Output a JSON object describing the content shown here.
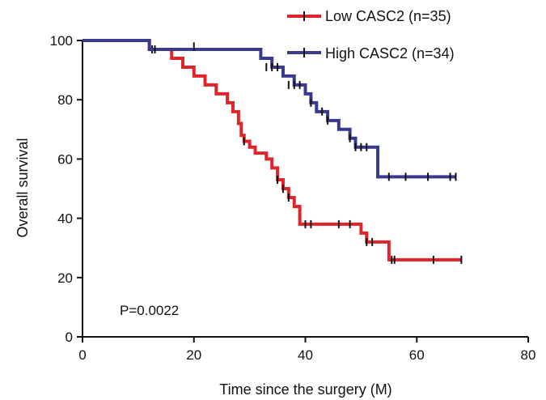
{
  "chart_data": {
    "type": "line",
    "step": true,
    "xlabel": "Time since the surgery (M)",
    "ylabel": "Overall survival",
    "xlim": [
      0,
      80
    ],
    "ylim": [
      0,
      100
    ],
    "xticks": [
      0,
      20,
      40,
      60,
      80
    ],
    "yticks": [
      0,
      20,
      40,
      60,
      80,
      100
    ],
    "grid": false,
    "legend_position": "top-right",
    "annotation": "P=0.0022",
    "series": [
      {
        "name": "Low CASC2 (n=35)",
        "color": "#e0242b",
        "steps": [
          [
            0,
            100
          ],
          [
            12,
            97
          ],
          [
            16,
            94
          ],
          [
            18,
            91
          ],
          [
            20,
            88
          ],
          [
            22,
            85
          ],
          [
            24,
            82
          ],
          [
            26,
            79
          ],
          [
            27,
            76
          ],
          [
            28,
            72
          ],
          [
            28.5,
            68
          ],
          [
            29,
            66
          ],
          [
            30,
            64
          ],
          [
            31,
            62
          ],
          [
            33,
            60
          ],
          [
            34,
            57
          ],
          [
            35,
            53
          ],
          [
            36,
            50
          ],
          [
            37,
            47
          ],
          [
            38,
            44
          ],
          [
            39,
            38
          ],
          [
            50,
            35
          ],
          [
            51,
            32
          ],
          [
            53,
            32
          ],
          [
            55,
            26
          ],
          [
            68,
            26
          ]
        ],
        "censored": [
          [
            12.5,
            97
          ],
          [
            29,
            66
          ],
          [
            35,
            53
          ],
          [
            36,
            50
          ],
          [
            37,
            47
          ],
          [
            40,
            38
          ],
          [
            41,
            38
          ],
          [
            46,
            38
          ],
          [
            48,
            38
          ],
          [
            51,
            32
          ],
          [
            52,
            32
          ],
          [
            55.5,
            26
          ],
          [
            56,
            26
          ],
          [
            63,
            26
          ],
          [
            68,
            26
          ]
        ]
      },
      {
        "name": "High CASC2 (n=34)",
        "color": "#3a3a8c",
        "steps": [
          [
            0,
            100
          ],
          [
            12,
            97
          ],
          [
            32,
            94
          ],
          [
            34,
            91
          ],
          [
            36,
            88
          ],
          [
            38,
            85
          ],
          [
            40,
            82
          ],
          [
            41,
            79
          ],
          [
            42,
            76
          ],
          [
            44,
            73
          ],
          [
            46,
            70
          ],
          [
            48,
            67
          ],
          [
            49,
            64
          ],
          [
            53,
            54
          ],
          [
            67,
            54
          ]
        ],
        "censored": [
          [
            13,
            97
          ],
          [
            20,
            98
          ],
          [
            33,
            91
          ],
          [
            34,
            91
          ],
          [
            35,
            91
          ],
          [
            37,
            85
          ],
          [
            38,
            85
          ],
          [
            39,
            85
          ],
          [
            41,
            79
          ],
          [
            43,
            76
          ],
          [
            44,
            73
          ],
          [
            48,
            67
          ],
          [
            49,
            64
          ],
          [
            50,
            64
          ],
          [
            51,
            64
          ],
          [
            55,
            54
          ],
          [
            58,
            54
          ],
          [
            62,
            54
          ],
          [
            66,
            54
          ],
          [
            67,
            54
          ]
        ]
      }
    ]
  }
}
